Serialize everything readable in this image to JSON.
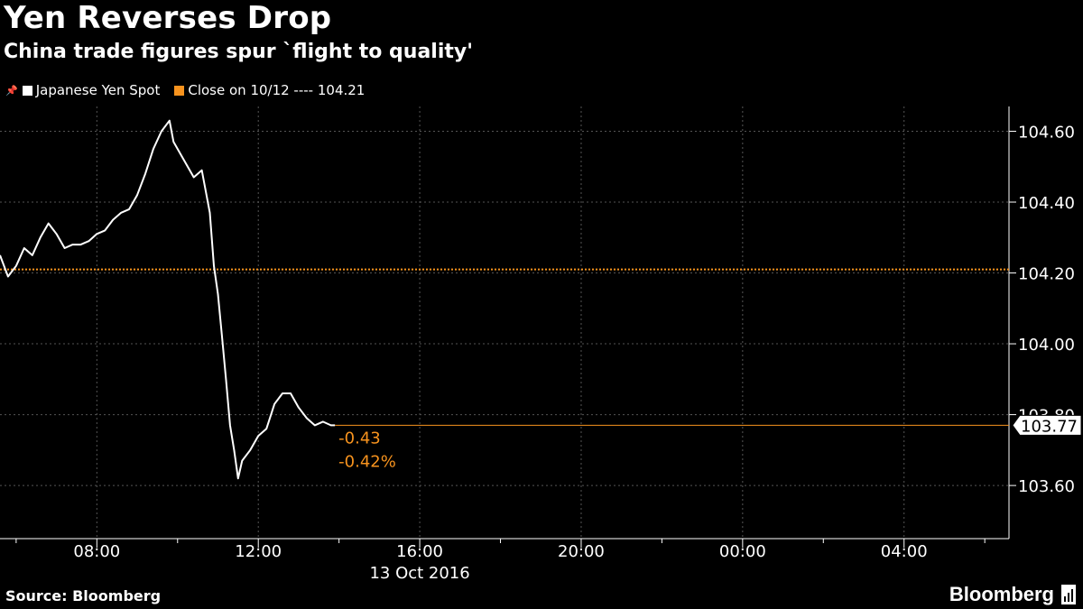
{
  "header": {
    "title": "Yen Reverses Drop",
    "subtitle": "China trade figures spur `flight to quality'"
  },
  "legend": {
    "series_label": "Japanese Yen Spot",
    "close_label": "Close on 10/12 ---- 104.21"
  },
  "colors": {
    "background": "#000000",
    "series": "#ffffff",
    "accent": "#f7931e",
    "grid": "#555555"
  },
  "footer": {
    "source": "Source: Bloomberg",
    "brand": "Bloomberg"
  },
  "chart_data": {
    "type": "line",
    "title": "Yen Reverses Drop",
    "subtitle": "China trade figures spur `flight to quality'",
    "xlabel": "13 Oct 2016",
    "ylabel": "",
    "x_ticks": [
      "08:00",
      "12:00",
      "16:00",
      "20:00",
      "00:00",
      "04:00"
    ],
    "x_tick_hours": [
      8,
      12,
      16,
      20,
      24,
      28
    ],
    "xlim_hours": [
      5.6,
      30.6
    ],
    "y_ticks": [
      "104.60",
      "104.40",
      "104.20",
      "104.00",
      "103.80",
      "103.60"
    ],
    "y_tick_values": [
      104.6,
      104.4,
      104.2,
      104.0,
      103.8,
      103.6
    ],
    "ylim": [
      103.45,
      104.67
    ],
    "grid": true,
    "legend_position": "top-left",
    "reference_line": {
      "name": "Close on 10/12",
      "value": 104.21
    },
    "last_value": {
      "value": 103.77,
      "label": "103.77"
    },
    "change_labels": [
      "-0.43",
      "-0.42%"
    ],
    "series": [
      {
        "name": "Japanese Yen Spot",
        "x": [
          5.6,
          5.8,
          6.0,
          6.2,
          6.4,
          6.6,
          6.8,
          7.0,
          7.2,
          7.4,
          7.6,
          7.8,
          8.0,
          8.2,
          8.4,
          8.6,
          8.8,
          9.0,
          9.2,
          9.4,
          9.6,
          9.8,
          9.9,
          10.0,
          10.2,
          10.4,
          10.6,
          10.8,
          10.9,
          11.0,
          11.1,
          11.2,
          11.3,
          11.4,
          11.5,
          11.6,
          11.8,
          12.0,
          12.2,
          12.4,
          12.6,
          12.8,
          13.0,
          13.2,
          13.4,
          13.6,
          13.8,
          13.9
        ],
        "y": [
          104.25,
          104.19,
          104.22,
          104.27,
          104.25,
          104.3,
          104.34,
          104.31,
          104.27,
          104.28,
          104.28,
          104.29,
          104.31,
          104.32,
          104.35,
          104.37,
          104.38,
          104.42,
          104.48,
          104.55,
          104.6,
          104.63,
          104.57,
          104.55,
          104.51,
          104.47,
          104.49,
          104.37,
          104.22,
          104.14,
          104.02,
          103.9,
          103.77,
          103.7,
          103.62,
          103.67,
          103.7,
          103.74,
          103.76,
          103.83,
          103.86,
          103.86,
          103.82,
          103.79,
          103.77,
          103.78,
          103.77,
          103.77
        ]
      }
    ]
  }
}
